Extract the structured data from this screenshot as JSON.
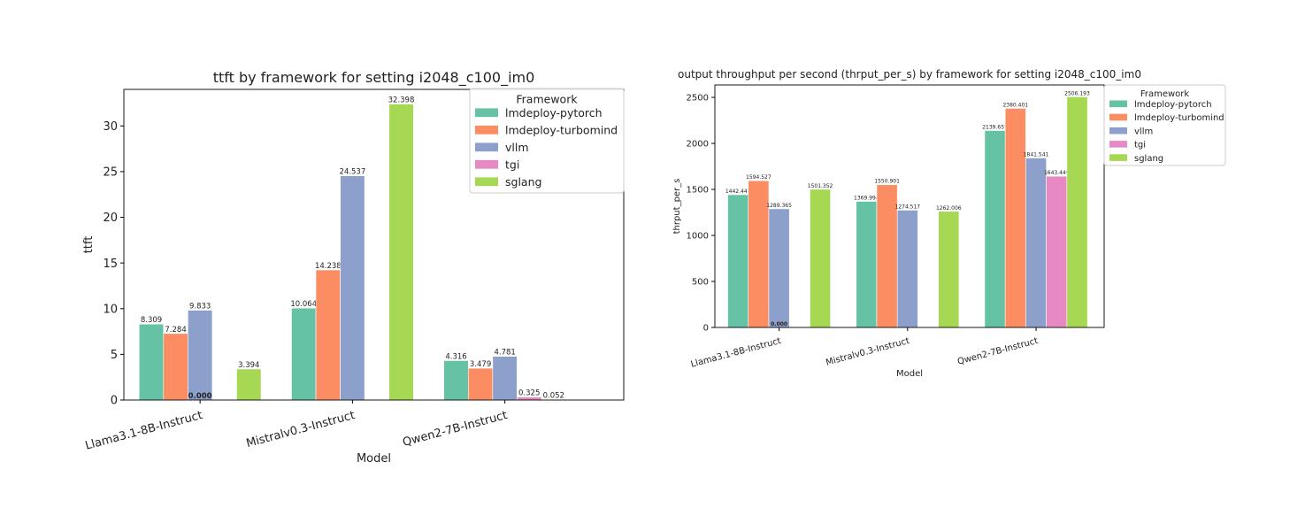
{
  "chart_data": [
    {
      "type": "bar",
      "title": "ttft by framework for setting i2048_c100_im0",
      "xlabel": "Model",
      "ylabel": "ttft",
      "categories": [
        "Llama3.1-8B-Instruct",
        "Mistralv0.3-Instruct",
        "Qwen2-7B-Instruct"
      ],
      "ylim": [
        0,
        34
      ],
      "yticks": [
        0,
        5,
        10,
        15,
        20,
        25,
        30
      ],
      "grid": false,
      "legend": {
        "title": "Framework",
        "placement": "top-right"
      },
      "series": [
        {
          "name": "lmdeploy-pytorch",
          "color": "#66c2a5",
          "values": [
            8.309,
            10.064,
            4.316
          ],
          "labels": [
            "8.309",
            "10.064",
            "4.316"
          ]
        },
        {
          "name": "lmdeploy-turbomind",
          "color": "#fc8d62",
          "values": [
            7.284,
            14.238,
            3.479
          ],
          "labels": [
            "7.284",
            "14.238",
            "3.479"
          ]
        },
        {
          "name": "vllm",
          "color": "#8da0cb",
          "values": [
            9.833,
            24.537,
            4.781
          ],
          "labels": [
            "9.833",
            "24.537",
            "4.781"
          ]
        },
        {
          "name": "tgi",
          "color": "#e78ac3",
          "values": [
            null,
            null,
            0.325
          ],
          "labels": [
            "0.000",
            "",
            "0.325"
          ]
        },
        {
          "name": "sglang",
          "color": "#a6d854",
          "values": [
            3.394,
            32.398,
            0.052
          ],
          "labels": [
            "3.394",
            "32.398",
            "0.052"
          ]
        }
      ]
    },
    {
      "type": "bar",
      "title": "output throughput per second (thrput_per_s) by framework for setting i2048_c100_im0",
      "xlabel": "Model",
      "ylabel": "thrput_per_s",
      "categories": [
        "Llama3.1-8B-Instruct",
        "Mistralv0.3-Instruct",
        "Qwen2-7B-Instruct"
      ],
      "ylim": [
        0,
        2635
      ],
      "yticks": [
        0,
        500,
        1000,
        1500,
        2000,
        2500
      ],
      "grid": false,
      "legend": {
        "title": "Framework",
        "placement": "outside-right"
      },
      "series": [
        {
          "name": "lmdeploy-pytorch",
          "color": "#66c2a5",
          "values": [
            1442.447,
            1369.994,
            2139.657
          ],
          "labels": [
            "1442.447",
            "1369.994",
            "2139.657"
          ]
        },
        {
          "name": "lmdeploy-turbomind",
          "color": "#fc8d62",
          "values": [
            1594.527,
            1550.901,
            2380.401
          ],
          "labels": [
            "1594.527",
            "1550.901",
            "2380.401"
          ]
        },
        {
          "name": "vllm",
          "color": "#8da0cb",
          "values": [
            1289.365,
            1274.517,
            1841.541
          ],
          "labels": [
            "1289.365",
            "1274.517",
            "1841.541"
          ]
        },
        {
          "name": "tgi",
          "color": "#e78ac3",
          "values": [
            null,
            null,
            1643.449
          ],
          "labels": [
            "0.000",
            "",
            "1643.449"
          ]
        },
        {
          "name": "sglang",
          "color": "#a6d854",
          "values": [
            1501.352,
            1262.006,
            2506.193
          ],
          "labels": [
            "1501.352",
            "1262.006",
            "2506.193"
          ]
        }
      ]
    }
  ]
}
